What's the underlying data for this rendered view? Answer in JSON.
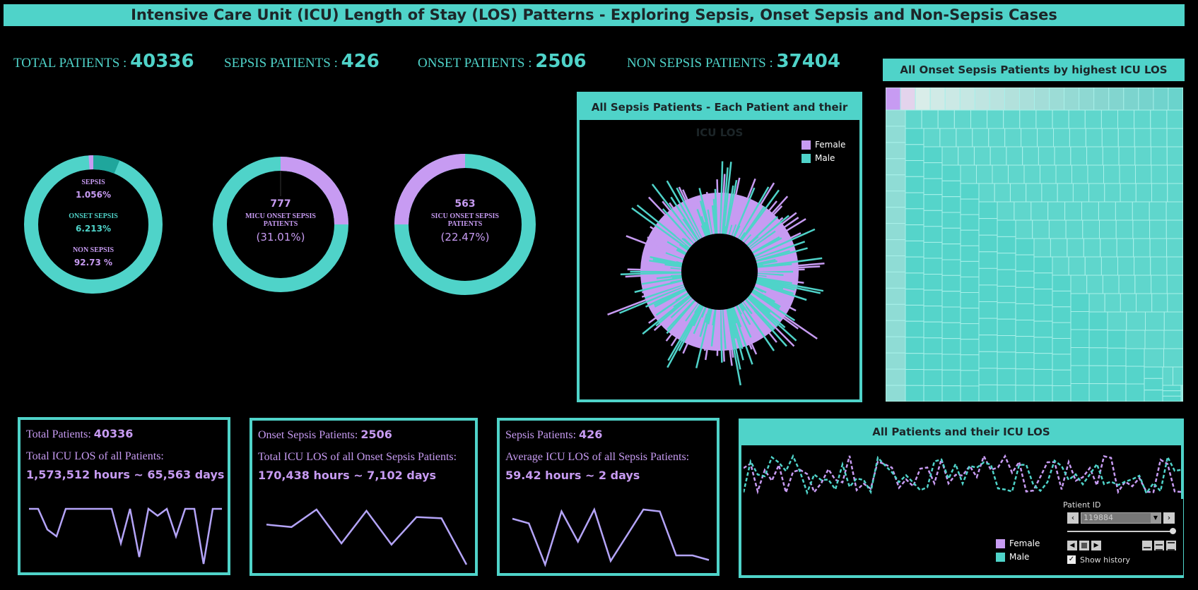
{
  "title": "Intensive Care Unit (ICU) Length of Stay (LOS) Patterns - Exploring Sepsis, Onset Sepsis and Non-Sepsis Cases",
  "colors": {
    "teal": "#4fd3c9",
    "purple": "#c79bf2",
    "lavender": "#b4a4f8",
    "dark_teal": "#1fa69c"
  },
  "kpis": {
    "total_label": "TOTAL PATIENTS :",
    "total_value": "40336",
    "sepsis_label": "SEPSIS PATIENTS :",
    "sepsis_value": "426",
    "onset_label": "ONSET PATIENTS :",
    "onset_value": "2506",
    "non_label": "NON SEPSIS PATIENTS :",
    "non_value": "37404"
  },
  "donuts": {
    "d1": {
      "sepsis_label": "SEPSIS",
      "sepsis_pct": "1.056%",
      "onset_label": "ONSET SEPSIS",
      "onset_pct": "6.213%",
      "non_label": "NON SEPSIS",
      "non_pct": "92.73 %"
    },
    "d2": {
      "value": "777",
      "label": "MICU ONSET SEPSIS PATIENTS",
      "pct": "(31.01%)"
    },
    "d3": {
      "value": "563",
      "label": "SICU ONSET SEPSIS PATIENTS",
      "pct": "(22.47%)"
    }
  },
  "radial": {
    "title": "All Sepsis Patients - Each Patient and their ICU LOS",
    "legend": [
      "Female",
      "Male"
    ]
  },
  "treemap": {
    "title": "All Onset Sepsis Patients by highest ICU LOS order"
  },
  "cards": {
    "c1": {
      "line1_label": "Total Patients:",
      "line1_value": "40336",
      "line2": "Total ICU LOS of all Patients:",
      "line3": "1,573,512 hours ~ 65,563 days"
    },
    "c2": {
      "line1_label": "Onset Sepsis Patients:",
      "line1_value": "2506",
      "line2": "Total ICU LOS of all Onset Sepsis Patients:",
      "line3": "170,438 hours ~ 7,102 days"
    },
    "c3": {
      "line1_label": "Sepsis Patients:",
      "line1_value": "426",
      "line2": "Average ICU LOS of all Sepsis Patients:",
      "line3": "59.42 hours ~ 2 days"
    }
  },
  "los_panel": {
    "title": "All Patients and their ICU LOS",
    "legend": [
      "Female",
      "Male"
    ],
    "patient_id_label": "Patient ID",
    "patient_id_value": "119884",
    "show_history": "Show history"
  },
  "chart_data": [
    {
      "type": "pie",
      "categories": [
        "Sepsis",
        "Onset Sepsis",
        "Non Sepsis"
      ],
      "values": [
        1.056,
        6.213,
        92.73
      ]
    },
    {
      "type": "pie",
      "categories": [
        "MICU Onset Sepsis",
        "Other"
      ],
      "values": [
        31.01,
        68.99
      ]
    },
    {
      "type": "pie",
      "categories": [
        "SICU Onset Sepsis",
        "Other"
      ],
      "values": [
        22.47,
        77.53
      ]
    },
    {
      "type": "line",
      "values": [
        8,
        8,
        5,
        4,
        8,
        8,
        8,
        8,
        8,
        8,
        3,
        8,
        1,
        8,
        7,
        8,
        4,
        8,
        8,
        0,
        8,
        8
      ]
    },
    {
      "type": "line",
      "values": [
        5,
        4.8,
        6.2,
        3.5,
        6.1,
        3.4,
        5.6,
        5.5,
        1.8
      ]
    },
    {
      "type": "line",
      "values": [
        7,
        6.5,
        2,
        7.8,
        4.5,
        8,
        2.4,
        5.2,
        8,
        7.8,
        3,
        3,
        2.5
      ]
    }
  ]
}
